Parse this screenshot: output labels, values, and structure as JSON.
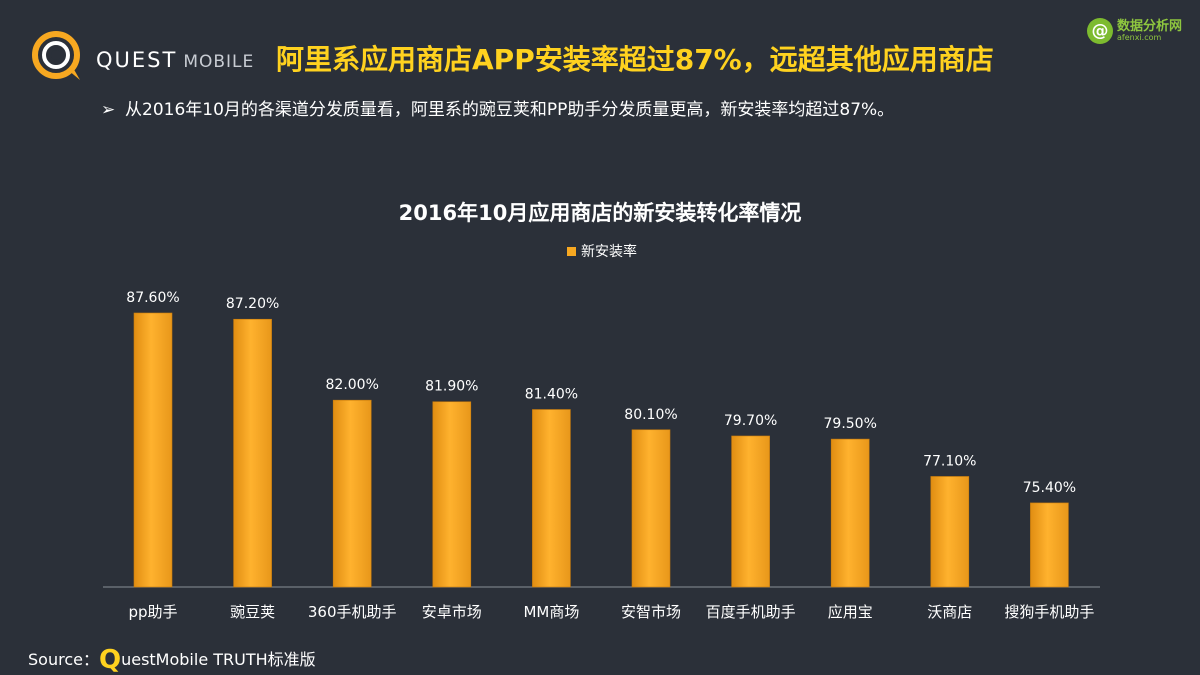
{
  "brand": {
    "name": "QUEST",
    "sub": "MOBILE"
  },
  "headline": "阿里系应用商店APP安装率超过87%，远超其他应用商店",
  "bullet": {
    "arrow": "➢",
    "text": "从2016年10月的各渠道分发质量看，阿里系的豌豆荚和PP助手分发质量更高，新安装率均超过87%。"
  },
  "watermark": {
    "badge": "@",
    "title": "数据分析网",
    "url": "afenxi.com"
  },
  "source": {
    "label": "Source：",
    "q": "Q",
    "rest": "uestMobile TRUTH标准版"
  },
  "colors": {
    "bar": "#f7a821",
    "headline": "#ffd21f",
    "background": "#2b3039"
  },
  "chart_data": {
    "type": "bar",
    "title": "2016年10月应用商店的新安装转化率情况",
    "legend": "新安装率",
    "legend_position": "top-center",
    "grid": false,
    "categories": [
      "pp助手",
      "豌豆荚",
      "360手机助手",
      "安卓市场",
      "MM商场",
      "安智市场",
      "百度手机助手",
      "应用宝",
      "沃商店",
      "搜狗手机助手"
    ],
    "values": [
      87.6,
      87.2,
      82.0,
      81.9,
      81.4,
      80.1,
      79.7,
      79.5,
      77.1,
      75.4
    ],
    "labels": [
      "87.60%",
      "87.20%",
      "82.00%",
      "81.90%",
      "81.40%",
      "80.10%",
      "79.70%",
      "79.50%",
      "77.10%",
      "75.40%"
    ],
    "ylim": [
      70,
      88.5
    ],
    "unit": "%"
  }
}
